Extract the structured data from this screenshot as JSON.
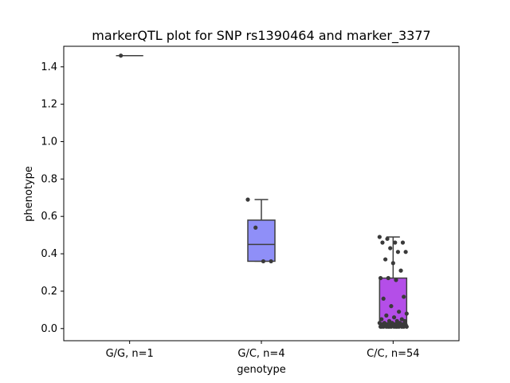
{
  "chart_data": {
    "type": "box",
    "title": "markerQTL plot for SNP rs1390464 and marker_3377",
    "xlabel": "genotype",
    "ylabel": "phenotype",
    "ylim": [
      -0.065,
      1.51
    ],
    "yticks": [
      0.0,
      0.2,
      0.4,
      0.6,
      0.8,
      1.0,
      1.2,
      1.4
    ],
    "ytick_labels": [
      "0.0",
      "0.2",
      "0.4",
      "0.6",
      "0.8",
      "1.0",
      "1.2",
      "1.4"
    ],
    "categories": [
      "G/G, n=1",
      "G/C, n=4",
      "C/C, n=54"
    ],
    "boxes": [
      {
        "category": "G/G, n=1",
        "color": "#6a6aff",
        "q1": 1.46,
        "median": 1.46,
        "q3": 1.46,
        "whisker_low": 1.46,
        "whisker_high": 1.46,
        "points": [
          1.46
        ]
      },
      {
        "category": "G/C, n=4",
        "color": "#8f8ff8",
        "q1": 0.36,
        "median": 0.45,
        "q3": 0.58,
        "whisker_low": 0.36,
        "whisker_high": 0.69,
        "points": [
          0.69,
          0.54,
          0.36,
          0.36
        ]
      },
      {
        "category": "C/C, n=54",
        "color": "#b44ee8",
        "q1": 0.02,
        "median": 0.03,
        "q3": 0.27,
        "whisker_low": 0.01,
        "whisker_high": 0.49,
        "points": [
          0.49,
          0.48,
          0.46,
          0.46,
          0.46,
          0.43,
          0.41,
          0.41,
          0.37,
          0.35,
          0.31,
          0.27,
          0.27,
          0.26,
          0.17,
          0.16,
          0.12,
          0.09,
          0.08,
          0.07,
          0.06,
          0.05,
          0.05,
          0.04,
          0.04,
          0.04,
          0.03,
          0.03,
          0.03,
          0.03,
          0.02,
          0.02,
          0.02,
          0.02,
          0.02,
          0.02,
          0.02,
          0.02,
          0.02,
          0.02,
          0.01,
          0.01,
          0.01,
          0.01,
          0.01,
          0.01,
          0.01,
          0.01,
          0.01,
          0.01,
          0.01,
          0.01,
          0.01,
          0.01
        ]
      }
    ],
    "point_color": "#3a3a3a",
    "grid": false,
    "legend": "none"
  }
}
